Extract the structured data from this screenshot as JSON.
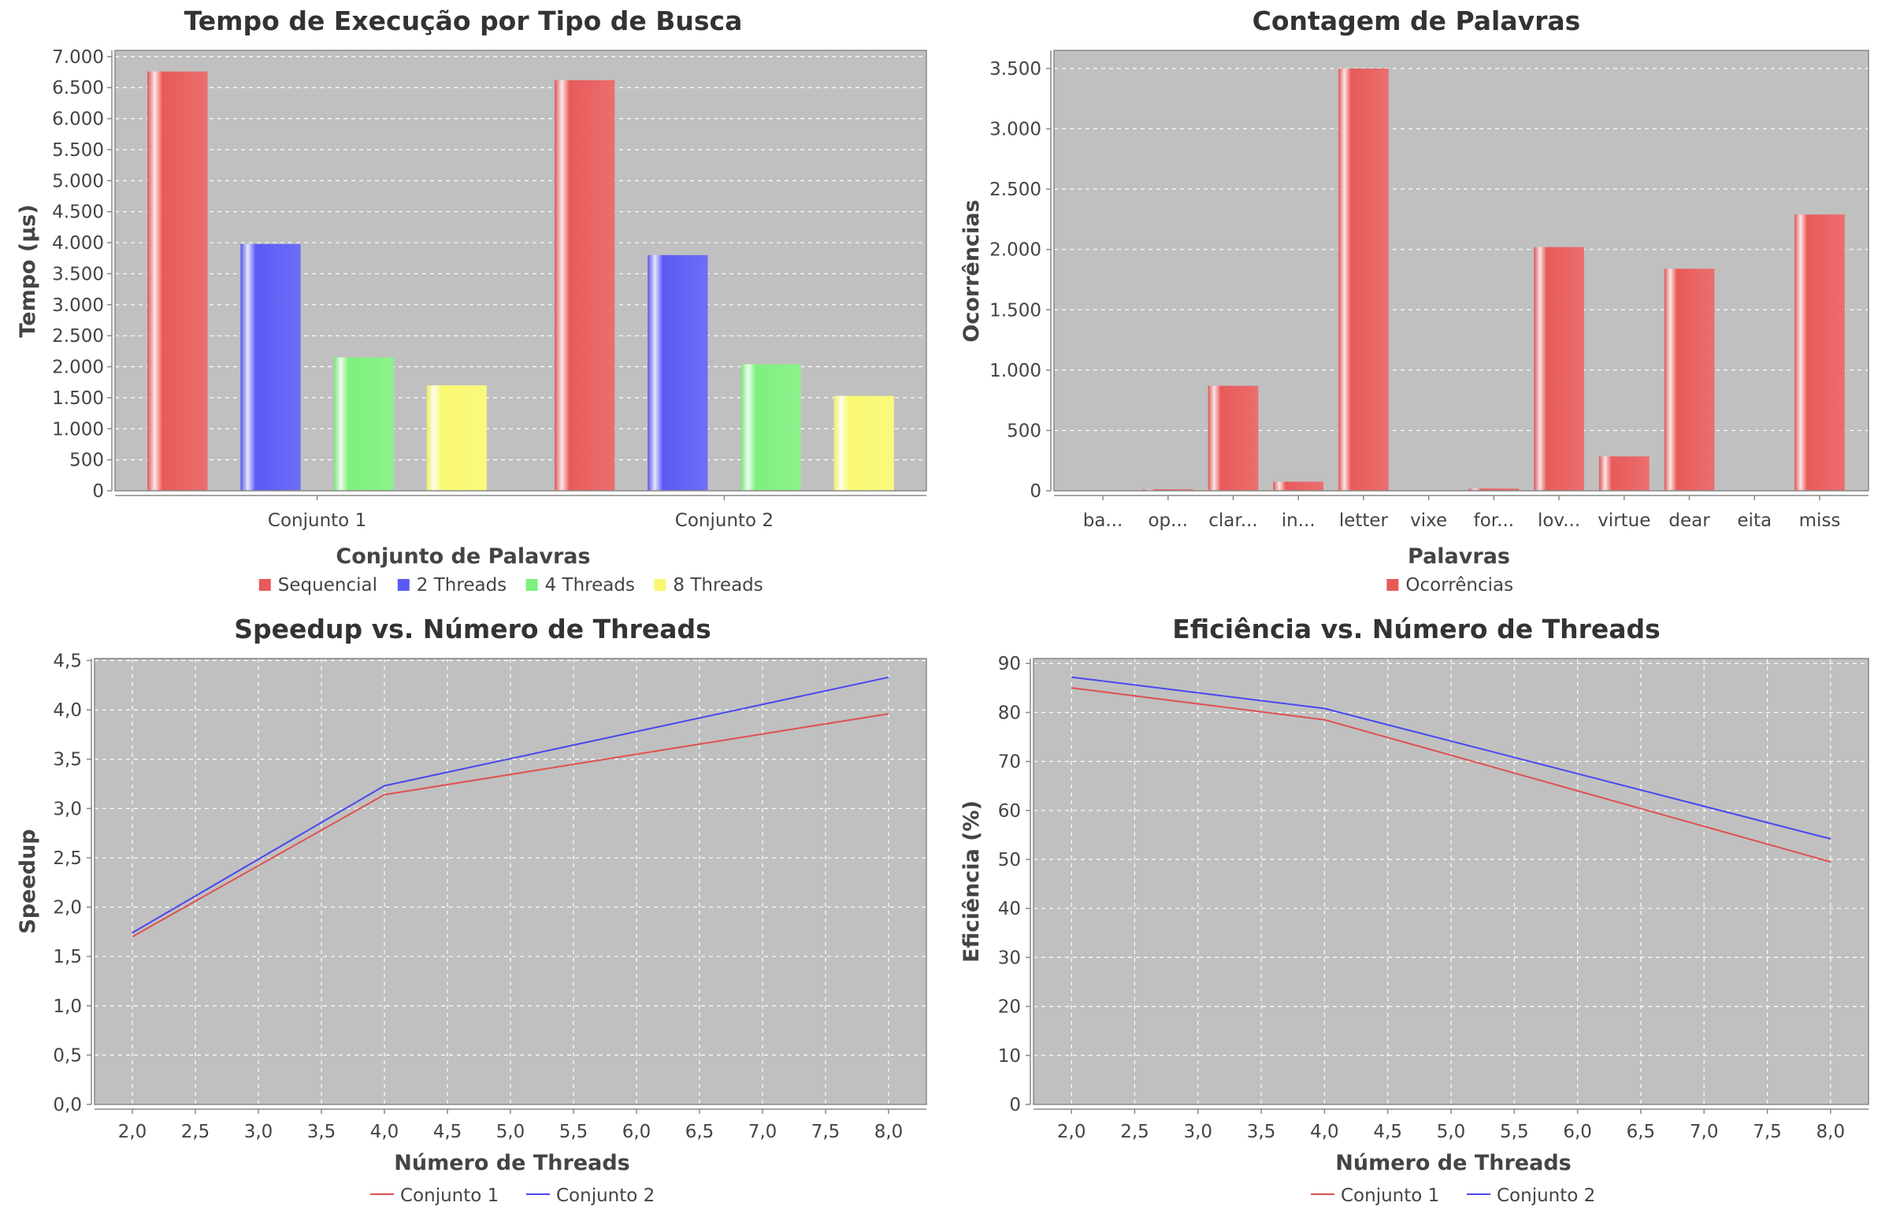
{
  "chart_data": [
    {
      "type": "bar",
      "title": "Tempo de Execução por Tipo de Busca",
      "xlabel": "Conjunto de Palavras",
      "ylabel": "Tempo (µs)",
      "categories": [
        "Conjunto 1",
        "Conjunto 2"
      ],
      "series": [
        {
          "name": "Sequencial",
          "values": [
            6760,
            6620
          ],
          "color": "#e85a5a"
        },
        {
          "name": "2 Threads",
          "values": [
            3980,
            3800
          ],
          "color": "#5a5af5"
        },
        {
          "name": "4 Threads",
          "values": [
            2150,
            2040
          ],
          "color": "#7df07d"
        },
        {
          "name": "8 Threads",
          "values": [
            1700,
            1530
          ],
          "color": "#f8f870"
        }
      ],
      "ylim": [
        0,
        7100
      ],
      "yticks": [
        0,
        500,
        1000,
        1500,
        2000,
        2500,
        3000,
        3500,
        4000,
        4500,
        5000,
        5500,
        6000,
        6500,
        7000
      ],
      "ytick_labels": [
        "0",
        "500",
        "1.000",
        "1.500",
        "2.000",
        "2.500",
        "3.000",
        "3.500",
        "4.000",
        "4.500",
        "5.000",
        "5.500",
        "6.000",
        "6.500",
        "7.000"
      ],
      "grid": true,
      "legend": "bottom"
    },
    {
      "type": "bar",
      "title": "Contagem de Palavras",
      "xlabel": "Palavras",
      "ylabel": "Ocorrências",
      "categories": [
        "ba...",
        "op...",
        "clar...",
        "in...",
        "letter",
        "vixe",
        "for...",
        "lov...",
        "virtue",
        "dear",
        "eita",
        "miss"
      ],
      "series": [
        {
          "name": "Ocorrências",
          "values": [
            3,
            12,
            870,
            75,
            3500,
            0,
            18,
            2020,
            285,
            1840,
            0,
            2290
          ],
          "color": "#e85a5a"
        }
      ],
      "ylim": [
        0,
        3650
      ],
      "yticks": [
        0,
        500,
        1000,
        1500,
        2000,
        2500,
        3000,
        3500
      ],
      "ytick_labels": [
        "0",
        "500",
        "1.000",
        "1.500",
        "2.000",
        "2.500",
        "3.000",
        "3.500"
      ],
      "grid": true,
      "legend": "bottom"
    },
    {
      "type": "line",
      "title": "Speedup vs. Número de Threads",
      "xlabel": "Número de Threads",
      "ylabel": "Speedup",
      "x": [
        2,
        4,
        8
      ],
      "series": [
        {
          "name": "Conjunto 1",
          "values": [
            1.7,
            3.14,
            3.96
          ],
          "color": "#e05050"
        },
        {
          "name": "Conjunto 2",
          "values": [
            1.74,
            3.23,
            4.33
          ],
          "color": "#4848f0"
        }
      ],
      "xlim": [
        1.7,
        8.3
      ],
      "ylim": [
        0,
        4.52
      ],
      "xticks": [
        2,
        2.5,
        3,
        3.5,
        4,
        4.5,
        5,
        5.5,
        6,
        6.5,
        7,
        7.5,
        8
      ],
      "xtick_labels": [
        "2,0",
        "2,5",
        "3,0",
        "3,5",
        "4,0",
        "4,5",
        "5,0",
        "5,5",
        "6,0",
        "6,5",
        "7,0",
        "7,5",
        "8,0"
      ],
      "yticks": [
        0,
        0.5,
        1,
        1.5,
        2,
        2.5,
        3,
        3.5,
        4,
        4.5
      ],
      "ytick_labels": [
        "0,0",
        "0,5",
        "1,0",
        "1,5",
        "2,0",
        "2,5",
        "3,0",
        "3,5",
        "4,0",
        "4,5"
      ],
      "grid": true,
      "legend": "bottom"
    },
    {
      "type": "line",
      "title": "Eficiência vs. Número de Threads",
      "xlabel": "Número de Threads",
      "ylabel": "Eficiência (%)",
      "x": [
        2,
        4,
        8
      ],
      "series": [
        {
          "name": "Conjunto 1",
          "values": [
            85.0,
            78.5,
            49.5
          ],
          "color": "#e05050"
        },
        {
          "name": "Conjunto 2",
          "values": [
            87.2,
            80.8,
            54.2
          ],
          "color": "#4848f0"
        }
      ],
      "xlim": [
        1.7,
        8.3
      ],
      "ylim": [
        0,
        91
      ],
      "xticks": [
        2,
        2.5,
        3,
        3.5,
        4,
        4.5,
        5,
        5.5,
        6,
        6.5,
        7,
        7.5,
        8
      ],
      "xtick_labels": [
        "2,0",
        "2,5",
        "3,0",
        "3,5",
        "4,0",
        "4,5",
        "5,0",
        "5,5",
        "6,0",
        "6,5",
        "7,0",
        "7,5",
        "8,0"
      ],
      "yticks": [
        0,
        10,
        20,
        30,
        40,
        50,
        60,
        70,
        80,
        90
      ],
      "ytick_labels": [
        "0",
        "10",
        "20",
        "30",
        "40",
        "50",
        "60",
        "70",
        "80",
        "90"
      ],
      "grid": true,
      "legend": "bottom"
    }
  ]
}
